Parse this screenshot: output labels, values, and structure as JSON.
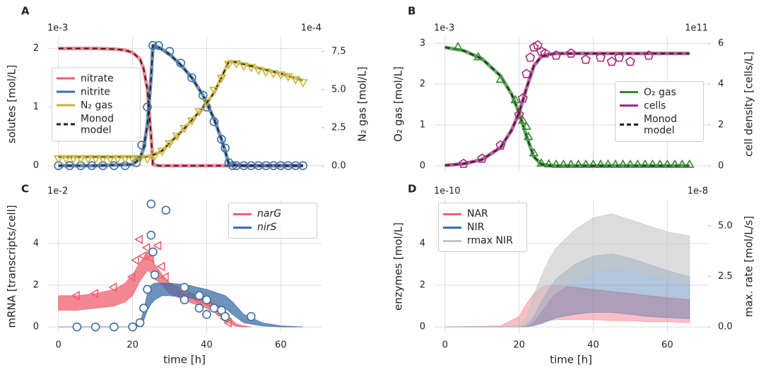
{
  "chart_data": [
    {
      "type": "line",
      "panel_label": "A",
      "y_offset": "1e-3",
      "y2_offset": "1e-4",
      "ylabel": "solutes [mol/L]",
      "y2label": "N₂ gas [mol/L]",
      "xlim": [
        -3,
        71
      ],
      "xticks": [
        0,
        20,
        40,
        60
      ],
      "xtick_labels": false,
      "ylim": [
        -0.1,
        2.2
      ],
      "yticks": [
        0,
        1,
        2
      ],
      "y2lim": [
        -0.37,
        8.47
      ],
      "y2ticks": [
        {
          "value": 0,
          "label": "0.0"
        },
        2.5,
        {
          "value": 5,
          "label": "5.0"
        },
        7.5
      ],
      "grid": true,
      "legend_loc": "center left",
      "legend_extra": [
        {
          "name": "Monod model",
          "color": "#222222",
          "dashed": true
        }
      ],
      "series": [
        {
          "name": "nitrate",
          "style": "line",
          "color": "#f0606e",
          "dashed_overlay": true,
          "x": [
            0,
            5,
            10,
            15,
            18,
            20,
            22,
            23,
            24,
            25,
            25.5,
            27,
            30,
            40,
            50,
            60,
            66
          ],
          "values": [
            2.0,
            2.0,
            2.0,
            1.99,
            1.97,
            1.93,
            1.82,
            1.65,
            1.3,
            0.5,
            0.02,
            0,
            0,
            0,
            0,
            0,
            0
          ]
        },
        {
          "name": "nitrite",
          "style": "line",
          "color": "#3b6ea8",
          "dashed_overlay": true,
          "x": [
            0,
            10,
            20,
            22,
            23,
            24,
            25,
            25.5,
            27,
            30,
            33,
            36,
            39,
            42,
            44,
            45,
            46,
            50,
            60,
            66
          ],
          "values": [
            0,
            0,
            0.02,
            0.12,
            0.3,
            0.7,
            1.5,
            2.05,
            2.02,
            1.9,
            1.72,
            1.5,
            1.2,
            0.8,
            0.45,
            0.25,
            0.02,
            0,
            0,
            0
          ]
        },
        {
          "name": "N₂ gas",
          "style": "line",
          "color": "#c8b43c",
          "axis": "y2",
          "dashed_overlay": true,
          "x": [
            0,
            10,
            20,
            24,
            25.5,
            28,
            30,
            33,
            36,
            39,
            42,
            44,
            46,
            48,
            52,
            56,
            60,
            66
          ],
          "values": [
            0.6,
            0.6,
            0.6,
            0.62,
            0.7,
            1.0,
            1.5,
            2.2,
            3.0,
            3.8,
            4.8,
            5.8,
            6.85,
            6.8,
            6.55,
            6.3,
            6.05,
            5.6
          ]
        },
        {
          "style": "scatter",
          "marker": "circle",
          "color": "#3b6ea8",
          "x": [
            0,
            3,
            6,
            9,
            12,
            15,
            18,
            21,
            22.5,
            24,
            25.5,
            27,
            30,
            33,
            36,
            39,
            40,
            42,
            44,
            45,
            46,
            47,
            48,
            50,
            52,
            54,
            56,
            58,
            60,
            62,
            64,
            66
          ],
          "values": [
            0,
            0,
            0,
            0,
            0,
            0,
            0,
            0.05,
            0.35,
            1.0,
            2.05,
            2.05,
            1.95,
            1.75,
            1.5,
            1.2,
            1.0,
            0.75,
            0.45,
            0.3,
            0.05,
            0,
            0,
            0,
            0,
            0,
            0,
            0,
            0,
            0,
            0,
            0
          ]
        },
        {
          "style": "scatter",
          "marker": "triangle-down",
          "color": "#c8b43c",
          "axis": "y2",
          "x": [
            0,
            2,
            4,
            6,
            8,
            10,
            12,
            14,
            16,
            18,
            20,
            22,
            24,
            26,
            28,
            30,
            32,
            34,
            36,
            38,
            40,
            42,
            44,
            46,
            48,
            50,
            52,
            54,
            56,
            58,
            60,
            62,
            64,
            66
          ],
          "values": [
            0.5,
            0.5,
            0.5,
            0.5,
            0.5,
            0.5,
            0.5,
            0.5,
            0.5,
            0.5,
            0.5,
            0.5,
            0.5,
            0.7,
            1.0,
            1.5,
            2.0,
            2.5,
            3.0,
            3.6,
            4.2,
            5.0,
            5.8,
            6.7,
            6.75,
            6.6,
            6.5,
            6.3,
            6.2,
            6.1,
            6.0,
            5.9,
            5.7,
            5.5
          ]
        }
      ]
    },
    {
      "type": "line",
      "panel_label": "B",
      "y_offset": "1e-3",
      "y2_offset": "1e11",
      "ylabel": "O₂ gas [mol/L]",
      "y2label": "cell density [cells/L]",
      "xlim": [
        -3,
        71
      ],
      "xticks": [
        0,
        20,
        40,
        60
      ],
      "xtick_labels": false,
      "ylim": [
        -0.14,
        3.16
      ],
      "yticks": [
        0,
        1,
        2,
        3
      ],
      "y2lim": [
        -0.28,
        6.32
      ],
      "y2ticks": [
        0,
        2,
        4,
        6
      ],
      "grid": true,
      "legend_loc": "center right",
      "legend_extra": [
        {
          "name": "Monod model",
          "color": "#222222",
          "dashed": true
        }
      ],
      "series": [
        {
          "name": "O₂ gas",
          "style": "line",
          "color": "#2e8b2e",
          "dashed_overlay": true,
          "x": [
            0,
            5,
            10,
            15,
            18,
            20,
            22,
            24,
            26,
            28,
            30,
            40,
            50,
            60,
            66
          ],
          "values": [
            2.9,
            2.82,
            2.62,
            2.2,
            1.75,
            1.3,
            0.72,
            0.22,
            0.04,
            0.01,
            0,
            0,
            0,
            0,
            0
          ]
        },
        {
          "name": "cells",
          "style": "line",
          "color": "#a8287c",
          "axis": "y2",
          "dashed_overlay": true,
          "x": [
            0,
            5,
            10,
            15,
            18,
            20,
            22,
            24,
            26,
            28,
            30,
            40,
            50,
            60,
            66
          ],
          "values": [
            0.02,
            0.1,
            0.3,
            0.9,
            1.75,
            2.6,
            3.8,
            4.9,
            5.35,
            5.45,
            5.5,
            5.5,
            5.5,
            5.5,
            5.5
          ]
        },
        {
          "style": "scatter",
          "marker": "triangle-up",
          "color": "#2e8b2e",
          "x": [
            3.5,
            9,
            15,
            19,
            21,
            22,
            22.5,
            24,
            26,
            28,
            30,
            32,
            34,
            36,
            38,
            40,
            42,
            44,
            46,
            48,
            50,
            52,
            54,
            56,
            58,
            60,
            62,
            64,
            66
          ],
          "values": [
            2.9,
            2.65,
            2.1,
            1.6,
            1.1,
            0.95,
            0.7,
            0.3,
            0.05,
            0.03,
            0.02,
            0.02,
            0.02,
            0.02,
            0.02,
            0.02,
            0.02,
            0.02,
            0.02,
            0.02,
            0.02,
            0.02,
            0.02,
            0.02,
            0.02,
            0.02,
            0.02,
            0.02,
            0.02
          ]
        },
        {
          "style": "scatter",
          "marker": "pentagon",
          "color": "#a8287c",
          "axis": "y2",
          "x": [
            5,
            10,
            15,
            20,
            21,
            22,
            23,
            24,
            25,
            26,
            27,
            30,
            34,
            38,
            42,
            45,
            47,
            50,
            55
          ],
          "values": [
            0.1,
            0.35,
            1.0,
            2.5,
            3.3,
            4.5,
            5.3,
            5.8,
            5.9,
            5.6,
            5.5,
            5.4,
            5.5,
            5.2,
            5.3,
            5.1,
            5.3,
            5.1,
            5.4
          ]
        }
      ]
    },
    {
      "type": "line",
      "panel_label": "C",
      "y_offset": "1e-2",
      "ylabel": "mRNA [transcripts/cell]",
      "xlabel": "time [h]",
      "xlim": [
        -3,
        71
      ],
      "xticks": [
        0,
        20,
        40,
        60
      ],
      "xtick_labels": true,
      "ylim": [
        -0.3,
        6.1
      ],
      "yticks": [
        0,
        2,
        4
      ],
      "grid": true,
      "legend_loc": "upper right",
      "series": [
        {
          "name": "narG",
          "italic": true,
          "style": "band",
          "color": "#f0606e",
          "opacity": 0.75,
          "x": [
            0,
            5,
            10,
            15,
            18,
            20,
            22,
            24,
            25,
            26,
            28,
            30,
            35,
            40,
            45,
            46,
            47,
            48,
            50,
            52
          ],
          "upper": [
            1.5,
            1.5,
            1.6,
            1.8,
            2.1,
            2.5,
            3.1,
            3.6,
            3.5,
            3.0,
            2.5,
            2.1,
            1.7,
            1.3,
            0.8,
            0.5,
            0.3,
            0.15,
            0.05,
            0
          ],
          "lower": [
            0.8,
            0.8,
            0.9,
            1.0,
            1.2,
            1.5,
            2.2,
            2.7,
            2.6,
            2.3,
            2.0,
            1.6,
            1.2,
            0.9,
            0.4,
            0.2,
            0.1,
            0.03,
            0,
            0
          ]
        },
        {
          "name": "nirS",
          "italic": true,
          "style": "band",
          "color": "#3b6ea8",
          "opacity": 0.75,
          "x": [
            0,
            20,
            21,
            22,
            23,
            24,
            25,
            26,
            28,
            30,
            35,
            40,
            45,
            47,
            50,
            55,
            60,
            66
          ],
          "upper": [
            0,
            0,
            0.05,
            0.2,
            0.8,
            1.6,
            2.0,
            2.1,
            2.1,
            2.1,
            2.0,
            1.8,
            1.5,
            1.2,
            0.6,
            0.2,
            0.05,
            0
          ],
          "lower": [
            0,
            0,
            0,
            0.05,
            0.3,
            0.8,
            1.1,
            1.3,
            1.5,
            1.5,
            1.4,
            1.2,
            0.9,
            0.6,
            0.2,
            0.05,
            0,
            0
          ]
        },
        {
          "style": "scatter",
          "marker": "triangle-left",
          "color": "#f0606e",
          "x": [
            5,
            10,
            15,
            20,
            21,
            22,
            23,
            24,
            25,
            27,
            28,
            29,
            34,
            38,
            40,
            42,
            44,
            45,
            46
          ],
          "values": [
            1.5,
            1.6,
            1.9,
            2.4,
            3.2,
            4.2,
            3.4,
            3.8,
            3.3,
            3.9,
            2.9,
            2.4,
            1.8,
            1.3,
            1.2,
            1.0,
            0.6,
            0.4,
            0.2
          ]
        },
        {
          "style": "scatter",
          "marker": "circle",
          "color": "#3b6ea8",
          "filled": true,
          "x": [
            5,
            10,
            15,
            20,
            22,
            23,
            24,
            25,
            25,
            25.5,
            26,
            29,
            34,
            34,
            38,
            38,
            40,
            40,
            42,
            44,
            45,
            52
          ],
          "values": [
            0,
            0,
            0,
            0,
            0.2,
            0.9,
            1.8,
            5.9,
            4.4,
            3.6,
            2.5,
            5.6,
            1.9,
            1.3,
            1.5,
            0.9,
            1.3,
            0.6,
            0.9,
            0.8,
            0.5,
            0.5
          ]
        }
      ]
    },
    {
      "type": "line",
      "panel_label": "D",
      "y_offset": "1e-10",
      "y2_offset": "1e-8",
      "ylabel": "enzymes [mol/L]",
      "y2label": "max. rate [mol/L/s]",
      "xlabel": "time [h]",
      "xlim": [
        -3,
        71
      ],
      "xticks": [
        0,
        20,
        40,
        60
      ],
      "xtick_labels": true,
      "ylim": [
        -0.3,
        6.1
      ],
      "yticks": [
        0,
        2,
        4
      ],
      "y2lim": [
        -0.31,
        6.29
      ],
      "y2ticks": [
        {
          "value": 0,
          "label": "0.0"
        },
        2.5,
        {
          "value": 5,
          "label": "5.0"
        }
      ],
      "grid": true,
      "legend_loc": "upper left",
      "series": [
        {
          "name": "NAR",
          "style": "band",
          "color": "#f0606e",
          "opacity": 0.4,
          "x": [
            0,
            15,
            20,
            22,
            24,
            26,
            28,
            30,
            35,
            40,
            45,
            50,
            55,
            60,
            66
          ],
          "upper": [
            0,
            0.05,
            0.5,
            1.1,
            1.6,
            1.9,
            2.0,
            2.0,
            1.9,
            1.8,
            1.7,
            1.6,
            1.5,
            1.4,
            1.3
          ],
          "lower": [
            0,
            0,
            0,
            0.05,
            0.1,
            0.2,
            0.3,
            0.35,
            0.35,
            0.35,
            0.3,
            0.3,
            0.25,
            0.25,
            0.2
          ]
        },
        {
          "name": "NIR",
          "style": "band",
          "color": "#3b6ea8",
          "opacity": 0.4,
          "x": [
            0,
            15,
            20,
            22,
            24,
            26,
            28,
            30,
            35,
            40,
            45,
            50,
            55,
            60,
            66
          ],
          "upper": [
            0,
            0,
            0,
            0.1,
            0.5,
            1.2,
            1.8,
            2.3,
            3.0,
            3.4,
            3.5,
            3.3,
            3.0,
            2.7,
            2.4
          ],
          "lower": [
            0,
            0,
            0,
            0,
            0.05,
            0.15,
            0.3,
            0.45,
            0.6,
            0.7,
            0.7,
            0.6,
            0.5,
            0.45,
            0.4
          ]
        },
        {
          "name": "rmax NIR",
          "style": "band",
          "color": "#c4c4c4",
          "axis": "y2",
          "opacity": 0.6,
          "x": [
            0,
            15,
            20,
            22,
            24,
            26,
            28,
            30,
            35,
            40,
            45,
            50,
            55,
            60,
            66
          ],
          "upper": [
            0,
            0,
            0.1,
            0.5,
            1.6,
            2.5,
            3.3,
            3.9,
            4.8,
            5.4,
            5.6,
            5.3,
            5.0,
            4.7,
            4.5
          ],
          "lower": [
            0,
            0,
            0,
            0.05,
            0.3,
            0.8,
            1.3,
            1.7,
            2.3,
            2.7,
            2.9,
            2.8,
            2.6,
            2.4,
            2.2
          ]
        }
      ]
    }
  ]
}
